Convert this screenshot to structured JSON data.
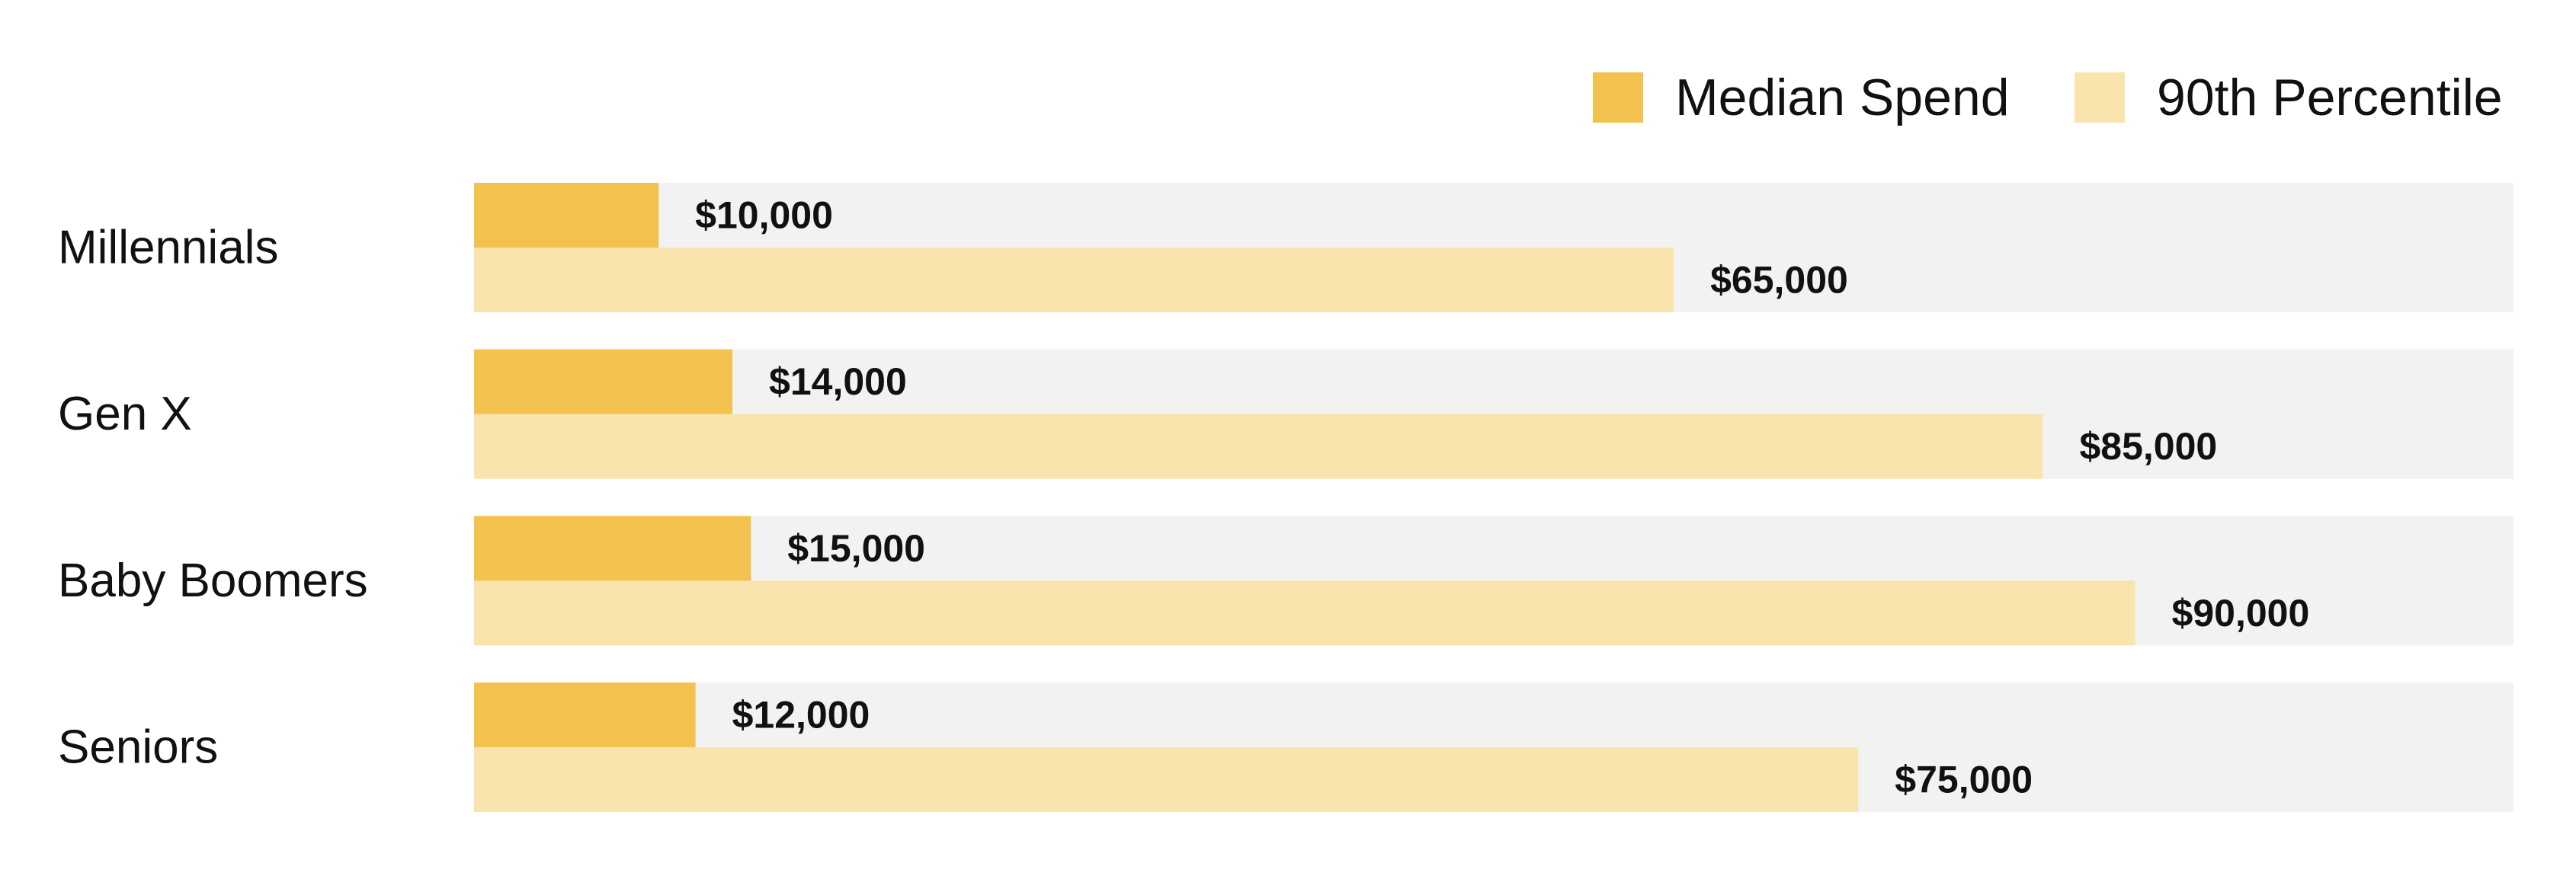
{
  "chart_data": {
    "type": "bar",
    "orientation": "horizontal",
    "categories": [
      "Millennials",
      "Gen X",
      "Baby Boomers",
      "Seniors"
    ],
    "series": [
      {
        "name": "Median Spend",
        "values": [
          10000,
          14000,
          15000,
          12000
        ],
        "labels": [
          "$10,000",
          "$14,000",
          "$15,000",
          "$12,000"
        ],
        "color": "#F2C14E"
      },
      {
        "name": "90th Percentile",
        "values": [
          65000,
          85000,
          90000,
          75000
        ],
        "labels": [
          "$65,000",
          "$85,000",
          "$90,000",
          "$75,000"
        ],
        "color": "#F9E4AE"
      }
    ],
    "xlim": [
      0,
      110500
    ],
    "track_color": "#F2F2F2",
    "grid": false,
    "axes_visible": false,
    "legend_position": "top-right"
  }
}
